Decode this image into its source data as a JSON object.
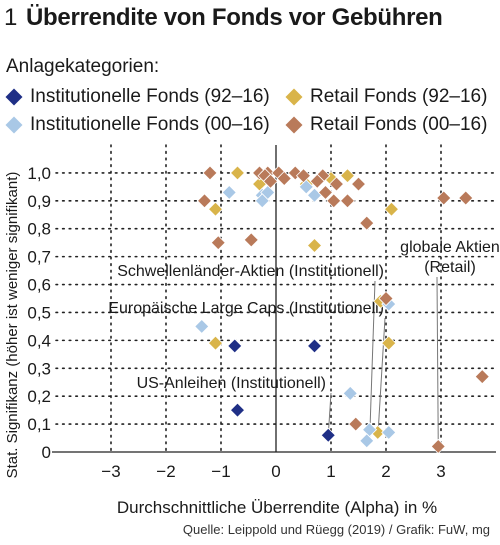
{
  "header": {
    "number": "1",
    "title": "Überrendite von Fonds vor Gebühren"
  },
  "legend": {
    "heading": "Anlagekategorien:",
    "items": [
      {
        "label": "Institutionelle Fonds (92–16)",
        "color": "#1f2f86"
      },
      {
        "label": "Retail Fonds (92–16)",
        "color": "#d9b44a"
      },
      {
        "label": "Institutionelle Fonds (00–16)",
        "color": "#a9c8e6"
      },
      {
        "label": "Retail Fonds (00–16)",
        "color": "#b97a5a"
      }
    ]
  },
  "source": "Quelle: Leippold und Rüegg (2019) / Grafik: FuW, mg",
  "chart_data": {
    "type": "scatter",
    "xlabel": "Durchschnittliche Überrendite (Alpha) in %",
    "ylabel": "Stat. Signifikanz (höher ist weniger signifikant)",
    "xlim": [
      -4,
      4
    ],
    "ylim": [
      0,
      1.1
    ],
    "x_ticks": [
      -3,
      -2,
      -1,
      0,
      1,
      2,
      3
    ],
    "y_ticks": [
      0,
      0.1,
      0.2,
      0.3,
      0.4,
      0.5,
      0.6,
      0.7,
      0.8,
      0.9,
      1.0
    ],
    "y_tick_labels": [
      "0",
      "0,1",
      "0,2",
      "0,3",
      "0,4",
      "0,5",
      "0,6",
      "0,7",
      "0,8",
      "0,9",
      "1,0"
    ],
    "grid": "dotted",
    "annotations": [
      {
        "text": "Schwellenländer-Aktien (Institutionell)",
        "target": [
          1.7,
          0.03
        ]
      },
      {
        "text": "Europäische Large Caps (Institutionell)",
        "target": [
          1.85,
          0.05
        ]
      },
      {
        "text": "US-Anleihen (Institutionell)",
        "target": [
          0.95,
          0.06
        ]
      },
      {
        "text": "globale Aktien",
        "text2": "(Retail)",
        "target": [
          2.95,
          0.03
        ]
      }
    ],
    "series": [
      {
        "name": "Institutionelle Fonds (92–16)",
        "color": "#1f2f86",
        "points": [
          [
            -0.75,
            0.38
          ],
          [
            0.7,
            0.38
          ],
          [
            -0.7,
            0.15
          ],
          [
            0.95,
            0.06
          ]
        ]
      },
      {
        "name": "Retail Fonds (92–16)",
        "color": "#d9b44a",
        "points": [
          [
            -0.7,
            1.0
          ],
          [
            -0.3,
            0.96
          ],
          [
            0.55,
            0.96
          ],
          [
            1.0,
            0.98
          ],
          [
            1.3,
            0.99
          ],
          [
            -1.1,
            0.87
          ],
          [
            2.1,
            0.87
          ],
          [
            0.7,
            0.74
          ],
          [
            1.9,
            0.54
          ],
          [
            2.05,
            0.39
          ],
          [
            -1.1,
            0.39
          ],
          [
            1.85,
            0.07
          ]
        ]
      },
      {
        "name": "Institutionelle Fonds (00–16)",
        "color": "#a9c8e6",
        "points": [
          [
            -0.85,
            0.93
          ],
          [
            -0.25,
            0.92
          ],
          [
            -0.15,
            0.93
          ],
          [
            -0.25,
            0.9
          ],
          [
            0.55,
            0.95
          ],
          [
            0.7,
            0.92
          ],
          [
            -1.35,
            0.45
          ],
          [
            2.05,
            0.53
          ],
          [
            1.35,
            0.21
          ],
          [
            1.7,
            0.08
          ],
          [
            1.65,
            0.04
          ],
          [
            2.05,
            0.07
          ]
        ]
      },
      {
        "name": "Retail Fonds (00–16)",
        "color": "#b97a5a",
        "points": [
          [
            -1.2,
            1.0
          ],
          [
            -0.3,
            1.0
          ],
          [
            -0.15,
            1.0
          ],
          [
            -0.2,
            0.99
          ],
          [
            0.05,
            1.0
          ],
          [
            0.35,
            1.0
          ],
          [
            0.5,
            0.99
          ],
          [
            0.85,
            0.99
          ],
          [
            0.15,
            0.98
          ],
          [
            0.75,
            0.97
          ],
          [
            1.1,
            0.96
          ],
          [
            1.5,
            0.96
          ],
          [
            -0.1,
            0.97
          ],
          [
            -1.3,
            0.9
          ],
          [
            0.9,
            0.93
          ],
          [
            1.05,
            0.9
          ],
          [
            1.3,
            0.9
          ],
          [
            3.05,
            0.91
          ],
          [
            3.45,
            0.91
          ],
          [
            1.65,
            0.82
          ],
          [
            -1.05,
            0.75
          ],
          [
            -0.45,
            0.76
          ],
          [
            2.0,
            0.55
          ],
          [
            3.75,
            0.27
          ],
          [
            1.45,
            0.1
          ],
          [
            2.95,
            0.02
          ]
        ]
      }
    ]
  }
}
